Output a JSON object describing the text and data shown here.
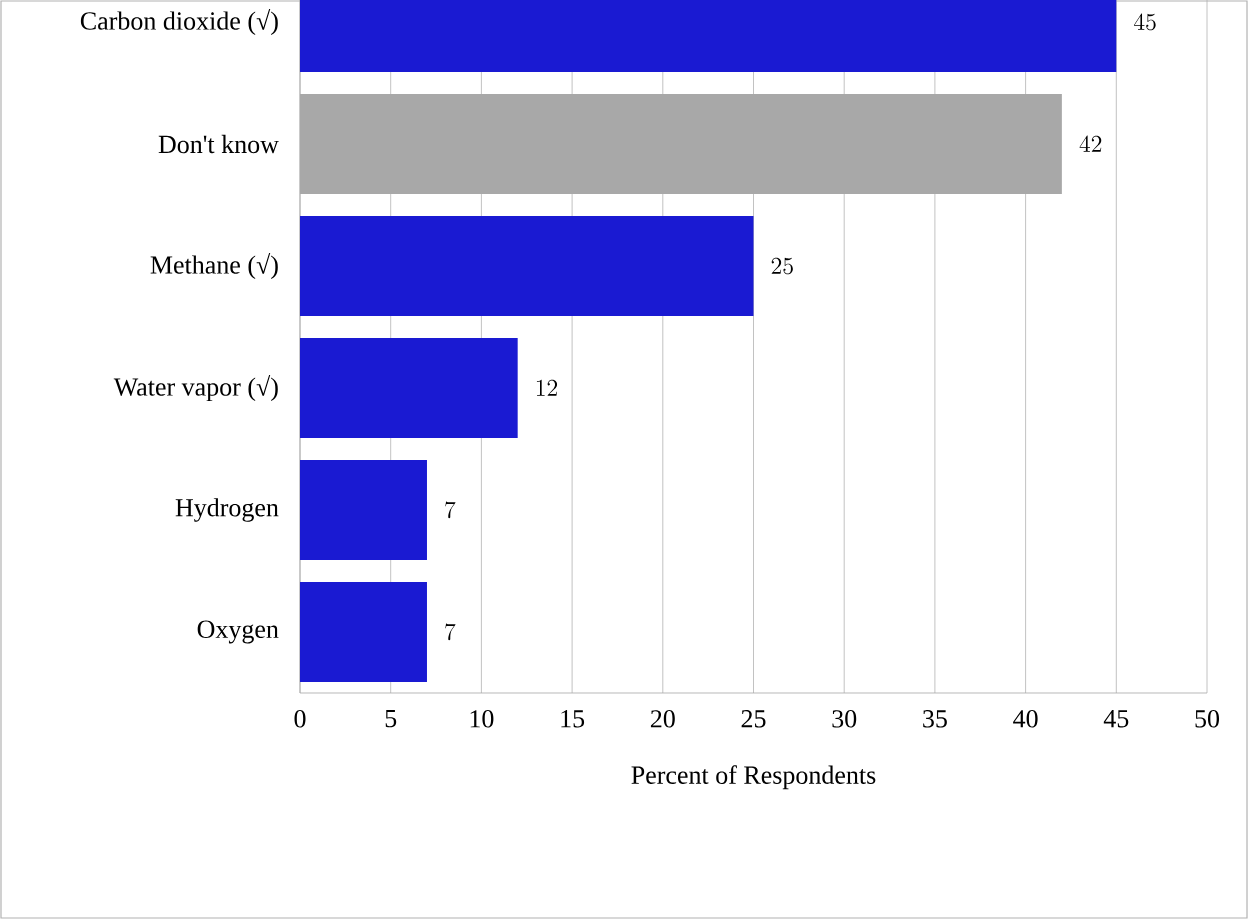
{
  "chart_data": {
    "type": "bar",
    "orientation": "horizontal",
    "xlabel": "Percent of Respondents",
    "categories": [
      "Carbon dioxide (√)",
      "Don't know",
      "Methane (√)",
      "Water vapor (√)",
      "Hydrogen",
      "Oxygen"
    ],
    "values": [
      45,
      42,
      25,
      12,
      7,
      7
    ],
    "colors": [
      "#1a1ad2",
      "#a8a8a8",
      "#1a1ad2",
      "#1a1ad2",
      "#1a1ad2",
      "#1a1ad2"
    ],
    "xlim": [
      0,
      50
    ],
    "xticks": [
      0,
      5,
      10,
      15,
      20,
      25,
      30,
      35,
      40,
      45,
      50
    ],
    "grid": "x",
    "data_labels": true
  }
}
